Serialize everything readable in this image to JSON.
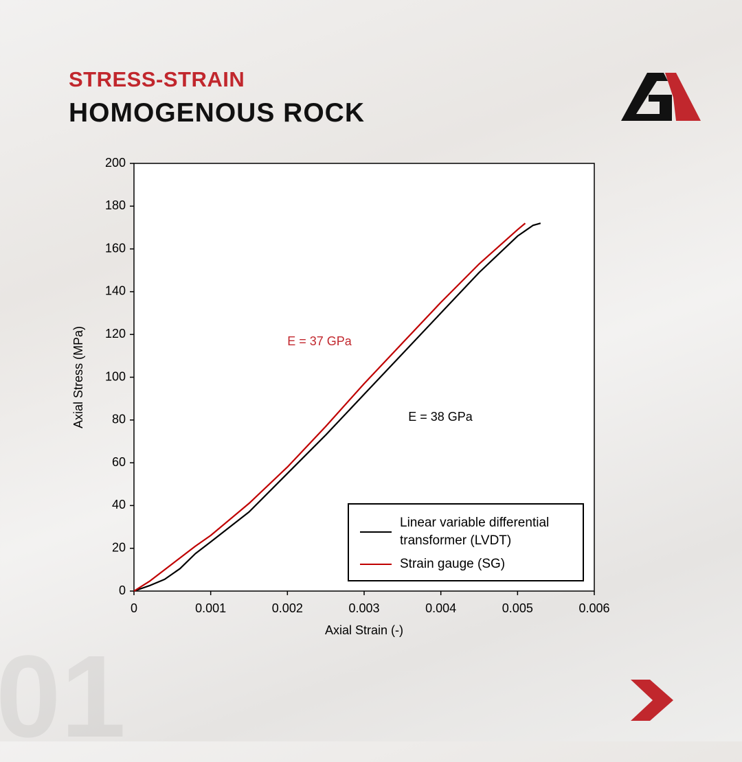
{
  "header": {
    "kicker": "STRESS-STRAIN",
    "title": "HOMOGENOUS ROCK"
  },
  "page_number": "01",
  "chart_data": {
    "type": "line",
    "xlabel": "Axial Strain (-)",
    "ylabel": "Axial Stress (MPa)",
    "xlim": [
      0,
      0.006
    ],
    "xticks": [
      0,
      0.001,
      0.002,
      0.003,
      0.004,
      0.005,
      0.006
    ],
    "ylim": [
      0,
      200
    ],
    "yticks": [
      0,
      20,
      40,
      60,
      80,
      100,
      120,
      140,
      160,
      180,
      200
    ],
    "grid": false,
    "legend": "lower right",
    "series": [
      {
        "name": "Linear variable differential transformer (LVDT)",
        "color": "#000000",
        "x": [
          0,
          0.0002,
          0.0004,
          0.0006,
          0.0008,
          0.001,
          0.0015,
          0.002,
          0.0025,
          0.003,
          0.0035,
          0.004,
          0.0045,
          0.005,
          0.0052,
          0.0053
        ],
        "values": [
          0,
          2.5,
          5.5,
          10.5,
          17.5,
          23,
          37,
          55,
          73,
          92,
          111,
          130,
          149,
          166,
          171,
          172
        ]
      },
      {
        "name": "Strain gauge (SG)",
        "color": "#c00000",
        "x": [
          0,
          0.0002,
          0.0004,
          0.0006,
          0.0008,
          0.001,
          0.0015,
          0.002,
          0.0025,
          0.003,
          0.0035,
          0.004,
          0.0045,
          0.005,
          0.0051
        ],
        "values": [
          0,
          4.5,
          10,
          15.5,
          21,
          26,
          41,
          58,
          77,
          97,
          116,
          135,
          153,
          169,
          172
        ]
      }
    ],
    "annotations": [
      {
        "text": "E = 37 GPa",
        "color": "#c1272d"
      },
      {
        "text": "E = 38 GPa",
        "color": "#000000"
      }
    ]
  }
}
